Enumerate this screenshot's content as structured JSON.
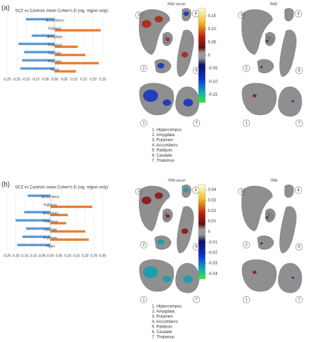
{
  "panels": [
    {
      "label": "(a)",
      "chart_data": {
        "type": "bar",
        "orientation": "horizontal",
        "title": "SCZ  vs Controls mean Cohen's D (sig. region only)",
        "categories": [
          "Accumbens",
          "Pallidum",
          "Amygdala",
          "Thalamus",
          "Caudate",
          "Putamen",
          "Hippo"
        ],
        "series": [
          {
            "color": "#5b9bd5",
            "values": [
              -0.15,
              null,
              -0.12,
              -0.19,
              -0.16,
              -0.17,
              -0.18
            ]
          },
          {
            "color": "#ed7d31",
            "values": [
              null,
              0.24,
              null,
              0.12,
              0.16,
              0.23,
              0.11
            ]
          }
        ],
        "xlim": [
          -0.25,
          0.25
        ],
        "xticks": [
          -0.25,
          {
            "value": -0.2,
            "label": "-0.20"
          },
          -0.15,
          {
            "value": -0.1,
            "label": "-0.10"
          },
          -0.05,
          {
            "value": 0,
            "label": "0.00"
          },
          0.05,
          {
            "value": 0.1,
            "label": "0.10"
          },
          0.15,
          {
            "value": 0.2,
            "label": "0.20"
          },
          0.25
        ],
        "grid": true
      },
      "colorbar": {
        "title": "RAD uncorr",
        "lim": [
          -0.18,
          0.18
        ],
        "ticks": [
          0.15,
          {
            "value": 0.1,
            "label": "0.10"
          },
          0.05,
          0,
          -0.05,
          {
            "value": -0.1,
            "label": "-0.10"
          },
          -0.15
        ]
      },
      "right_title": "RAD",
      "markers": [
        "1",
        "2",
        "3",
        "4",
        "5",
        "6",
        "7"
      ],
      "legend": [
        "1. Hippocampus",
        "2. Amygdala",
        "3. Putamen",
        "4. Accumbens",
        "5. Pallidum",
        "6. Caudate",
        "7. Thalamus"
      ]
    },
    {
      "label": "(b)",
      "chart_data": {
        "type": "bar",
        "orientation": "horizontal",
        "title": "SCZ  vs Controls mean Cohen's D (sig. region only)",
        "categories": [
          "Accumbens",
          "Pallidum",
          "Amygdala",
          "Thalamus",
          "Caudate",
          "Putamen",
          "Hippo"
        ],
        "series": [
          {
            "color": "#5b9bd5",
            "values": [
              -0.13,
              null,
              -0.15,
              -0.2,
              -0.14,
              -0.16,
              -0.19
            ]
          },
          {
            "color": "#ed7d31",
            "values": [
              null,
              0.24,
              0.1,
              0.09,
              0.2,
              0.22,
              null
            ]
          }
        ],
        "xlim": [
          -0.25,
          0.3
        ],
        "xticks": [
          -0.25,
          {
            "value": -0.2,
            "label": "-0.20"
          },
          -0.15,
          {
            "value": -0.1,
            "label": "-0.10"
          },
          -0.05,
          {
            "value": 0,
            "label": "0.00"
          },
          0.05,
          {
            "value": 0.1,
            "label": "0.10"
          },
          0.15,
          {
            "value": 0.2,
            "label": "0.20"
          },
          0.25,
          {
            "value": 0.3,
            "label": "0.30"
          }
        ],
        "grid": true
      },
      "colorbar": {
        "title": "TRM uncorr",
        "lim": [
          -0.045,
          0.045
        ],
        "ticks": [
          0.04,
          0.03,
          0.02,
          0.01,
          0,
          -0.01,
          -0.02,
          -0.03,
          -0.04
        ]
      },
      "right_title": "TRM",
      "markers": [
        "1",
        "2",
        "3",
        "4",
        "5",
        "6",
        "7"
      ],
      "legend": [
        "1. Hippocampus",
        "2. Amygdala",
        "3. Putamen",
        "4. Accumbens",
        "5. Pallidum",
        "6. Caudate",
        "7. Thalamus"
      ]
    }
  ]
}
